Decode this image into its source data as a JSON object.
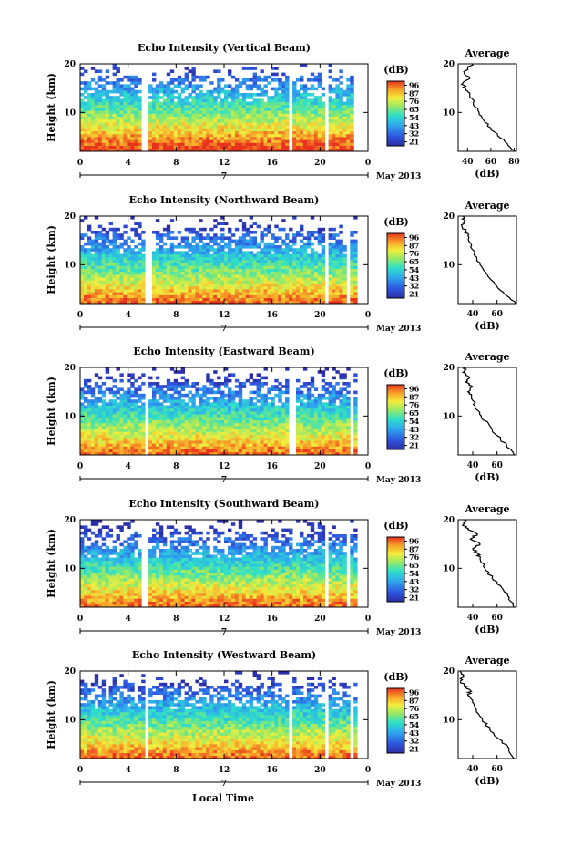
{
  "figure": {
    "xlabel_bottom": "Local Time"
  },
  "chart_data": [
    {
      "type": "heatmap",
      "title": "Echo Intensity (Vertical Beam)",
      "ylabel": "Height (km)",
      "x_ticks": [
        "0",
        "4",
        "8",
        "12",
        "16",
        "20",
        "0"
      ],
      "date_mark": "7",
      "date_label": "May 2013",
      "xlim": [
        0,
        24
      ],
      "ylim": [
        2,
        20
      ],
      "y_ticks": [
        "10",
        "20"
      ],
      "colorbar": {
        "unit": "(dB)",
        "ticks": [
          "96",
          "87",
          "76",
          "65",
          "54",
          "43",
          "32",
          "21"
        ],
        "range": [
          21,
          96
        ]
      },
      "gaps_hours": [
        5.4,
        17.5,
        20.6,
        22.9
      ],
      "average_profile": {
        "title": "Average",
        "xlabel": "(dB)",
        "x_ticks": [
          "40",
          "60",
          "80"
        ],
        "xlim": [
          32,
          82
        ],
        "y_ticks": [
          "10",
          "20"
        ],
        "height_km": [
          2,
          4,
          6,
          8,
          10,
          12,
          14,
          15,
          16,
          17,
          18,
          19,
          20
        ],
        "db": [
          81,
          72,
          63,
          55,
          50,
          45,
          42,
          38,
          36,
          42,
          37,
          40,
          44
        ]
      }
    },
    {
      "type": "heatmap",
      "title": "Echo Intensity (Northward Beam)",
      "ylabel": "Height (km)",
      "x_ticks": [
        "0",
        "4",
        "8",
        "12",
        "16",
        "20",
        "0"
      ],
      "date_mark": "7",
      "date_label": "May 2013",
      "xlim": [
        0,
        24
      ],
      "ylim": [
        2,
        20
      ],
      "y_ticks": [
        "10",
        "20"
      ],
      "colorbar": {
        "unit": "(dB)",
        "ticks": [
          "96",
          "87",
          "76",
          "65",
          "54",
          "43",
          "32",
          "21"
        ],
        "range": [
          21,
          96
        ]
      },
      "gaps_hours": [
        5.7,
        20.6,
        22.4
      ],
      "average_profile": {
        "title": "Average",
        "xlabel": "(dB)",
        "x_ticks": [
          "40",
          "60"
        ],
        "xlim": [
          28,
          76
        ],
        "y_ticks": [
          "10",
          "20"
        ],
        "height_km": [
          2,
          4,
          6,
          8,
          10,
          12,
          14,
          16,
          17,
          18,
          19,
          20
        ],
        "db": [
          75,
          66,
          58,
          52,
          46,
          41,
          39,
          36,
          34,
          31,
          33,
          32
        ]
      }
    },
    {
      "type": "heatmap",
      "title": "Echo Intensity (Eastward Beam)",
      "ylabel": "Height (km)",
      "x_ticks": [
        "0",
        "4",
        "8",
        "12",
        "16",
        "20",
        "0"
      ],
      "date_mark": "7",
      "date_label": "May 2013",
      "xlim": [
        0,
        24
      ],
      "ylim": [
        2,
        20
      ],
      "y_ticks": [
        "10",
        "20"
      ],
      "colorbar": {
        "unit": "(dB)",
        "ticks": [
          "96",
          "87",
          "76",
          "65",
          "54",
          "43",
          "32",
          "21"
        ],
        "range": [
          21,
          96
        ]
      },
      "gaps_hours": [
        5.5,
        17.7,
        22.6
      ],
      "average_profile": {
        "title": "Average",
        "xlabel": "(dB)",
        "x_ticks": [
          "40",
          "60"
        ],
        "xlim": [
          28,
          76
        ],
        "y_ticks": [
          "10",
          "20"
        ],
        "height_km": [
          2,
          4,
          6,
          8,
          10,
          12,
          14,
          15,
          16,
          17,
          18,
          19,
          20
        ],
        "db": [
          74,
          68,
          60,
          54,
          47,
          42,
          39,
          36,
          40,
          34,
          37,
          32,
          34
        ]
      }
    },
    {
      "type": "heatmap",
      "title": "Echo Intensity (Southward Beam)",
      "ylabel": "Height (km)",
      "x_ticks": [
        "0",
        "4",
        "8",
        "12",
        "16",
        "20",
        "0"
      ],
      "date_mark": "7",
      "date_label": "May 2013",
      "xlim": [
        0,
        24
      ],
      "ylim": [
        2,
        20
      ],
      "y_ticks": [
        "10",
        "20"
      ],
      "colorbar": {
        "unit": "(dB)",
        "ticks": [
          "96",
          "87",
          "76",
          "65",
          "54",
          "43",
          "32",
          "21"
        ],
        "range": [
          21,
          96
        ]
      },
      "gaps_hours": [
        5.4,
        20.6,
        22.3
      ],
      "average_profile": {
        "title": "Average",
        "xlabel": "(dB)",
        "x_ticks": [
          "40",
          "60"
        ],
        "xlim": [
          28,
          76
        ],
        "y_ticks": [
          "10",
          "20"
        ],
        "height_km": [
          2,
          4,
          6,
          8,
          10,
          12,
          13,
          14,
          15,
          16,
          17,
          18,
          19,
          20
        ],
        "db": [
          74,
          70,
          64,
          56,
          50,
          46,
          44,
          40,
          46,
          38,
          44,
          36,
          32,
          35
        ]
      }
    },
    {
      "type": "heatmap",
      "title": "Echo Intensity (Westward Beam)",
      "ylabel": "Height (km)",
      "x_ticks": [
        "0",
        "4",
        "8",
        "12",
        "16",
        "20",
        "0"
      ],
      "date_mark": "7",
      "date_label": "May 2013",
      "xlim": [
        0,
        24
      ],
      "ylim": [
        2,
        20
      ],
      "y_ticks": [
        "10",
        "20"
      ],
      "colorbar": {
        "unit": "(dB)",
        "ticks": [
          "96",
          "87",
          "76",
          "65",
          "54",
          "43",
          "32",
          "21"
        ],
        "range": [
          21,
          96
        ]
      },
      "gaps_hours": [
        5.6,
        17.6,
        20.5,
        22.7
      ],
      "average_profile": {
        "title": "Average",
        "xlabel": "(dB)",
        "x_ticks": [
          "40",
          "60"
        ],
        "xlim": [
          28,
          76
        ],
        "y_ticks": [
          "10",
          "20"
        ],
        "height_km": [
          2,
          4,
          6,
          8,
          10,
          12,
          14,
          15,
          16,
          17,
          18,
          19,
          20
        ],
        "db": [
          74,
          70,
          62,
          54,
          48,
          43,
          40,
          36,
          38,
          33,
          30,
          32,
          30
        ]
      }
    }
  ]
}
